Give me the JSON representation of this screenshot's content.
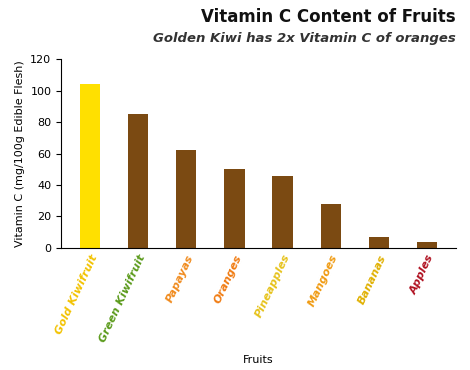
{
  "chart_data": {
    "type": "bar",
    "title": "Vitamin C Content of Fruits",
    "subtitle": "Golden Kiwi has 2x Vitamin C of oranges",
    "x_label": "Fruits",
    "y_label": "Vitamin C (mg/100g Edible Flesh)",
    "categories": [
      "Gold Kiwifruit",
      "Green Kiwifruit",
      "Papayas",
      "Oranges",
      "Pineapples",
      "Mangoes",
      "Bananas",
      "Apples"
    ],
    "values": [
      104,
      85,
      62,
      50,
      46,
      28,
      7,
      4
    ],
    "colors": [
      "#ffe000",
      "#7b4a12",
      "#7b4a12",
      "#7b4a12",
      "#7b4a12",
      "#7b4a12",
      "#7b4a12",
      "#7b4a12"
    ],
    "ylim": [
      0,
      120
    ],
    "yticks": [
      0,
      20,
      40,
      60,
      80,
      100,
      120
    ],
    "grid": false
  }
}
